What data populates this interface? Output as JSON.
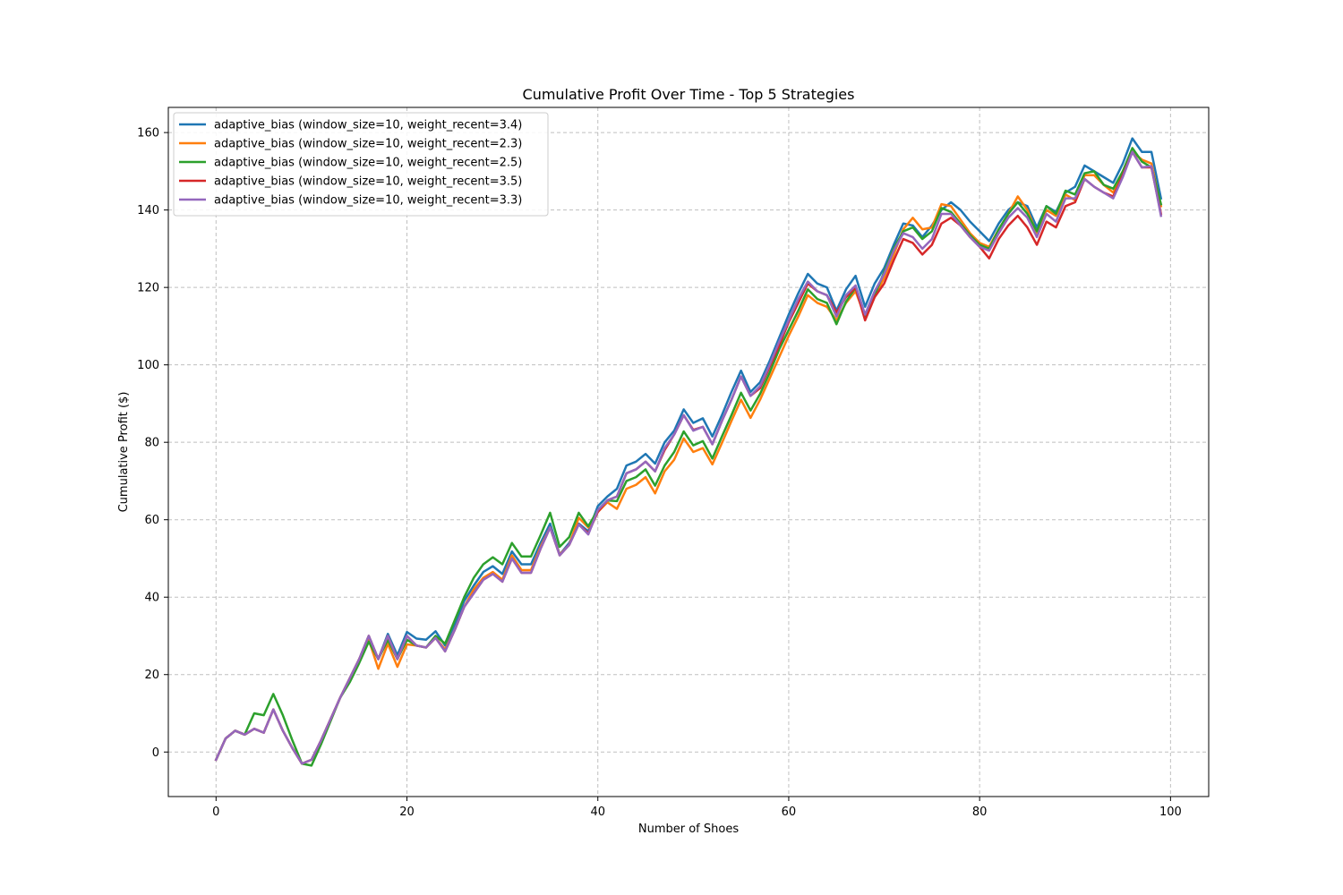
{
  "chart_data": {
    "type": "line",
    "title": "Cumulative Profit Over Time - Top 5 Strategies",
    "xlabel": "Number of Shoes",
    "ylabel": "Cumulative Profit ($)",
    "xlim": [
      -5,
      104
    ],
    "ylim": [
      -11.5,
      166.5
    ],
    "xticks": [
      0,
      20,
      40,
      60,
      80,
      100
    ],
    "yticks": [
      0,
      20,
      40,
      60,
      80,
      100,
      120,
      140,
      160
    ],
    "grid": true,
    "legend_position": "top-left",
    "x": [
      0,
      1,
      2,
      3,
      4,
      5,
      6,
      7,
      8,
      9,
      10,
      11,
      12,
      13,
      14,
      15,
      16,
      17,
      18,
      19,
      20,
      21,
      22,
      23,
      24,
      25,
      26,
      27,
      28,
      29,
      30,
      31,
      32,
      33,
      34,
      35,
      36,
      37,
      38,
      39,
      40,
      41,
      42,
      43,
      44,
      45,
      46,
      47,
      48,
      49,
      50,
      51,
      52,
      53,
      54,
      55,
      56,
      57,
      58,
      59,
      60,
      61,
      62,
      63,
      64,
      65,
      66,
      67,
      68,
      69,
      70,
      71,
      72,
      73,
      74,
      75,
      76,
      77,
      78,
      79,
      80,
      81,
      82,
      83,
      84,
      85,
      86,
      87,
      88,
      89,
      90,
      91,
      92,
      93,
      94,
      95,
      96,
      97,
      98,
      99
    ],
    "series": [
      {
        "name": "adaptive_bias (window_size=10, weight_recent=3.4)",
        "color": "#1f77b4",
        "values": [
          -2,
          3.5,
          5.5,
          4.5,
          6,
          5,
          11,
          5.5,
          1,
          -3,
          -2,
          3,
          8.5,
          14,
          19,
          24,
          30,
          24,
          30.5,
          25,
          31,
          29.3,
          29,
          31.2,
          27.5,
          33,
          39,
          43,
          46.5,
          48,
          46,
          51.8,
          48.5,
          48.5,
          54,
          59,
          51,
          54,
          59,
          57,
          63.5,
          66,
          68,
          74,
          75,
          77,
          74.5,
          80,
          83,
          88.5,
          85,
          86.2,
          81.5,
          87,
          93,
          98.5,
          93,
          95.5,
          101,
          107,
          113,
          118.5,
          123.5,
          121,
          120,
          114,
          119.5,
          123,
          115,
          121,
          125,
          131,
          136.5,
          136,
          133,
          136,
          140,
          142,
          140,
          137,
          134.5,
          132,
          136.5,
          140,
          142,
          141,
          135.5,
          141,
          139.5,
          144.5,
          146,
          151.5,
          150,
          148.5,
          147,
          152,
          158.5,
          155,
          155,
          143
        ]
      },
      {
        "name": "adaptive_bias (window_size=10, weight_recent=2.3)",
        "color": "#ff7f0e",
        "values": [
          -2,
          3.5,
          5.5,
          4.5,
          6,
          5,
          11,
          5.5,
          1,
          -3,
          -2,
          3,
          8.5,
          14,
          19,
          24,
          29,
          21.5,
          28,
          22,
          27.8,
          27.5,
          27,
          29.5,
          26.5,
          31.5,
          37.5,
          42,
          45,
          46.5,
          44.5,
          50.8,
          47,
          47,
          53,
          58,
          51,
          53.5,
          60.5,
          58,
          62,
          64.5,
          62.8,
          68,
          69,
          71,
          66.8,
          72.5,
          75.5,
          81,
          77.5,
          78.5,
          74.3,
          79.8,
          85.5,
          91,
          86.3,
          91,
          96.5,
          102,
          107.5,
          112.5,
          118,
          116,
          115,
          111.5,
          116,
          119,
          112.5,
          117.5,
          122.5,
          128.5,
          135,
          138,
          135,
          135.5,
          141.5,
          141,
          137.5,
          134,
          131.5,
          130.5,
          135,
          139,
          143.5,
          140,
          134,
          140,
          138.5,
          144,
          142.5,
          149,
          149,
          146.5,
          144.5,
          150,
          155,
          153,
          152,
          141
        ]
      },
      {
        "name": "adaptive_bias (window_size=10, weight_recent=2.5)",
        "color": "#2ca02c",
        "values": [
          -2,
          3.5,
          5.5,
          4.5,
          10,
          9.5,
          15,
          9.5,
          3,
          -3,
          -3.5,
          2,
          8,
          14,
          18,
          23,
          28.5,
          24,
          29,
          24,
          29,
          27.5,
          27,
          30,
          28,
          34,
          40,
          45,
          48.5,
          50.3,
          48.5,
          54,
          50.5,
          50.5,
          56,
          61.8,
          53,
          55.5,
          61.8,
          58.3,
          62.5,
          65,
          64.8,
          70,
          71,
          73,
          68.8,
          74,
          77.5,
          82.8,
          79.2,
          80.3,
          75.8,
          81.5,
          87,
          92.8,
          88.2,
          92.5,
          98,
          104,
          109,
          114,
          119.5,
          117,
          116,
          110.5,
          116.3,
          120,
          112,
          118,
          124,
          130,
          134.5,
          135.5,
          132.5,
          134.5,
          140.5,
          139.5,
          136.5,
          133.5,
          131,
          130,
          135,
          139,
          142,
          139,
          134.5,
          141,
          139,
          145,
          144,
          149.5,
          150,
          146.5,
          145.5,
          150,
          156,
          152.5,
          151,
          141.5
        ]
      },
      {
        "name": "adaptive_bias (window_size=10, weight_recent=3.5)",
        "color": "#d62728",
        "values": [
          -2,
          3.5,
          5.5,
          4.5,
          6,
          5,
          11,
          5.5,
          1,
          -3,
          -2,
          3,
          8.5,
          14,
          19,
          24,
          30,
          24,
          30,
          24,
          30,
          27.5,
          27,
          29.5,
          26,
          31.5,
          37.5,
          41,
          44.5,
          46,
          44,
          50,
          46.3,
          46.3,
          52.5,
          58,
          50.8,
          53.5,
          58.8,
          56.5,
          62,
          65,
          66,
          72,
          73,
          75,
          72.5,
          78,
          82,
          87,
          83.2,
          84,
          79.5,
          85.5,
          91,
          97,
          92,
          94,
          99.5,
          105,
          111,
          116,
          121,
          119,
          118,
          113.5,
          117.5,
          120,
          111.5,
          117.5,
          121,
          127,
          132.5,
          131.5,
          128.5,
          131,
          136.5,
          138,
          136,
          133,
          130.5,
          127.5,
          132.5,
          136,
          138.5,
          135.5,
          131,
          137,
          135.5,
          141,
          142,
          148,
          146,
          144.5,
          143.5,
          149,
          155,
          151,
          151,
          139
        ]
      },
      {
        "name": "adaptive_bias (window_size=10, weight_recent=3.3)",
        "color": "#9467bd",
        "values": [
          -2,
          3.5,
          5.5,
          4.5,
          6,
          5,
          11,
          5.5,
          1,
          -3,
          -2,
          3,
          8.5,
          14,
          19,
          24,
          30,
          24,
          30,
          24,
          30,
          27.5,
          27,
          29.5,
          26,
          31.5,
          37.5,
          41,
          44.5,
          46,
          44,
          50,
          46.3,
          46.3,
          52.5,
          58,
          50.8,
          53.5,
          58.8,
          56.2,
          62.5,
          65,
          66,
          72,
          73,
          75,
          72.5,
          78.5,
          82,
          87,
          83,
          84,
          79.5,
          85.5,
          91,
          97,
          92,
          94.5,
          100,
          106,
          111.5,
          117,
          121.5,
          119,
          118,
          112.5,
          118,
          120.5,
          113,
          119,
          123.5,
          129.5,
          134,
          133,
          130,
          132.5,
          139,
          139,
          136,
          133,
          130.5,
          129.5,
          134,
          138,
          140.5,
          138,
          133,
          139,
          137,
          143,
          143,
          148,
          146,
          144.5,
          143,
          148.5,
          155,
          151,
          151.3,
          138.5
        ]
      }
    ]
  }
}
